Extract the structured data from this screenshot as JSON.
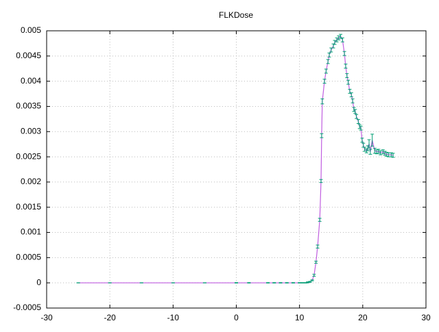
{
  "chart_data": {
    "type": "errorline",
    "title": "FLKDose",
    "x": [
      -25,
      -20,
      -15,
      -10,
      -5,
      0,
      2,
      5,
      6,
      7,
      8,
      9,
      10,
      10.5,
      11,
      11.3,
      11.66,
      12.0,
      12.3,
      12.6,
      12.86,
      13.2,
      13.4,
      13.5,
      13.6,
      13.95,
      14.2,
      14.5,
      14.7,
      15.0,
      15.35,
      15.57,
      15.9,
      16.2,
      16.5,
      16.8,
      17.1,
      17.3,
      17.5,
      17.7,
      17.95,
      18.2,
      18.4,
      18.6,
      18.8,
      19.0,
      19.3,
      19.5,
      19.7,
      19.9,
      20.1,
      20.3,
      20.6,
      20.8,
      21.0,
      21.2,
      21.5,
      21.9,
      22.2,
      22.5,
      22.8,
      23.2,
      23.5,
      23.8,
      24.1,
      24.5,
      24.8
    ],
    "series": [
      {
        "name": "FLKDose",
        "color": "#c05ee0",
        "error_color": "#009e73",
        "values": [
          0,
          0,
          0,
          0,
          0,
          0,
          0,
          0,
          0,
          0,
          0,
          0,
          0,
          0,
          0,
          1e-05,
          2e-05,
          5e-05,
          0.00015,
          0.00041,
          0.00072,
          0.00125,
          0.00202,
          0.00292,
          0.0036,
          0.004,
          0.0042,
          0.00439,
          0.00452,
          0.00462,
          0.0047,
          0.00477,
          0.00482,
          0.00486,
          0.00489,
          0.00482,
          0.00455,
          0.0043,
          0.00411,
          0.00398,
          0.0038,
          0.00373,
          0.00361,
          0.00344,
          0.0034,
          0.0033,
          0.0032,
          0.0031,
          0.00307,
          0.00283,
          0.00273,
          0.00265,
          0.00262,
          0.00267,
          0.00276,
          0.0026,
          0.00283,
          0.00262,
          0.0026,
          0.00261,
          0.00258,
          0.0026,
          0.00257,
          0.00255,
          0.00254,
          0.00254,
          0.00253
        ],
        "errors": [
          2e-06,
          2e-06,
          2e-06,
          2e-06,
          2e-06,
          5e-06,
          5e-06,
          5e-06,
          5e-06,
          5e-06,
          5e-06,
          5e-06,
          5e-06,
          5e-06,
          5e-06,
          1e-05,
          1e-05,
          1e-05,
          2e-05,
          2e-05,
          3e-05,
          3e-05,
          3e-05,
          4e-05,
          5e-05,
          4e-05,
          4e-05,
          4e-05,
          4e-05,
          4e-05,
          4e-05,
          4e-05,
          4e-05,
          4e-05,
          4e-05,
          4e-05,
          4e-05,
          4e-05,
          4e-05,
          4e-05,
          4e-05,
          4e-05,
          4e-05,
          4e-05,
          4e-05,
          4e-05,
          4e-05,
          4e-05,
          4e-05,
          4e-05,
          4e-05,
          4e-05,
          4e-05,
          5e-05,
          8e-05,
          5e-05,
          0.00012,
          5e-05,
          4e-05,
          4e-05,
          4e-05,
          4e-05,
          4e-05,
          4e-05,
          4e-05,
          4e-05,
          4e-05
        ]
      }
    ],
    "xlim": [
      -30,
      30
    ],
    "xticks": [
      -30,
      -20,
      -10,
      0,
      10,
      20,
      30
    ],
    "ylim": [
      -0.0005,
      0.005
    ],
    "yticks": [
      -0.0005,
      0,
      0.0005,
      0.001,
      0.0015,
      0.002,
      0.0025,
      0.003,
      0.0035,
      0.004,
      0.0045,
      0.005
    ],
    "grid": true
  }
}
